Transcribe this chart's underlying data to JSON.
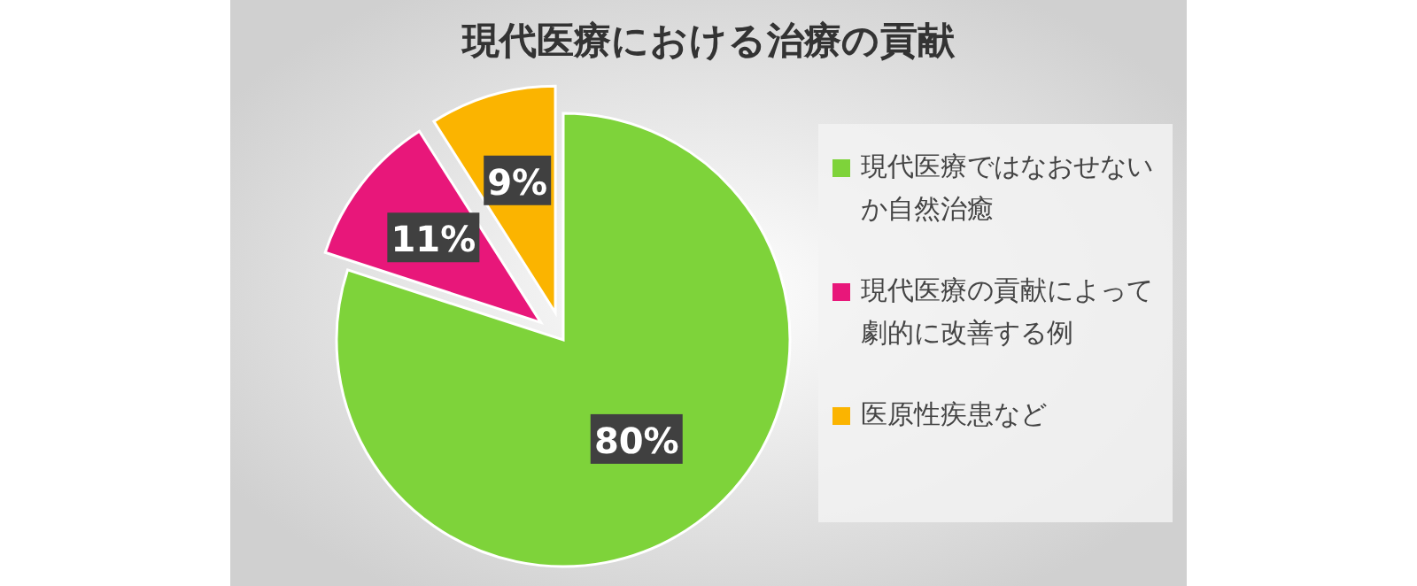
{
  "chart_data": {
    "type": "pie",
    "title": "現代医療における治療の貢献",
    "categories": [
      "現代医療ではなおせないか自然治癒",
      "現代医療の貢献によって劇的に改善する例",
      "医原性疾患など"
    ],
    "values": [
      80,
      11,
      9
    ],
    "colors": [
      "#7ed33a",
      "#e8177a",
      "#fbb400"
    ],
    "value_labels": [
      "80%",
      "11%",
      "9%"
    ],
    "legend": "right"
  }
}
